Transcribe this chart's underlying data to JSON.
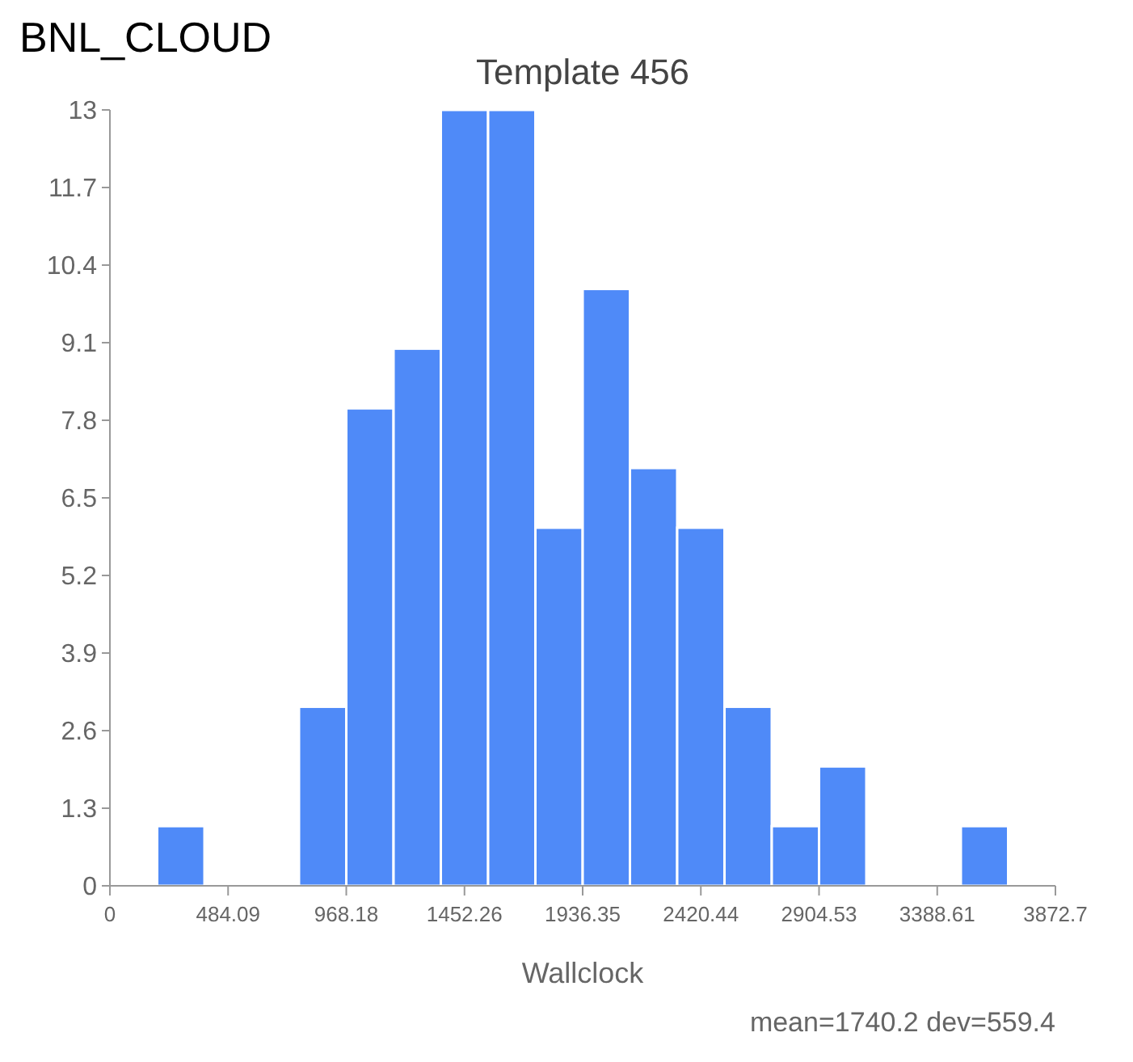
{
  "chart_data": {
    "type": "histogram",
    "title": "Template 456",
    "xlabel": "Wallclock",
    "bins": [
      0,
      193.6,
      387.3,
      580.9,
      774.5,
      968.2,
      1161.8,
      1355.4,
      1549.1,
      1742.7,
      1936.4,
      2130.0,
      2323.6,
      2517.3,
      2710.9,
      2904.5,
      3098.2,
      3291.8,
      3485.4,
      3679.1,
      3872.7
    ],
    "values": [
      0,
      1,
      0,
      0,
      3,
      8,
      9,
      13,
      13,
      6,
      10,
      7,
      6,
      3,
      1,
      2,
      0,
      0,
      1,
      0
    ],
    "color": "#4f8af8",
    "xlim": [
      0,
      3872.7
    ],
    "xticks": [
      0,
      484.09,
      968.18,
      1452.26,
      1936.35,
      2420.44,
      2904.53,
      3388.61,
      3872.7
    ],
    "ylim": [
      0,
      13
    ],
    "yticks": [
      0,
      1.3,
      2.6,
      3.9,
      5.2,
      6.5,
      7.8,
      9.1,
      10.4,
      11.7,
      13
    ],
    "grid": false,
    "annotations": [
      "BNL_CLOUD",
      "mean=1740.2 dev=559.4"
    ]
  }
}
